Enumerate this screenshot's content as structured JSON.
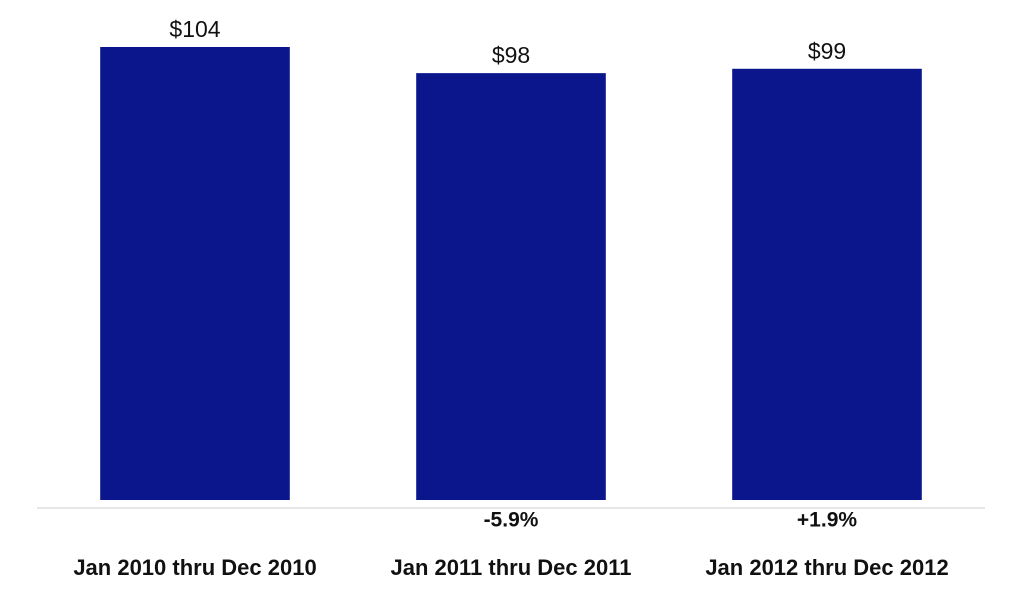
{
  "chart_data": {
    "type": "bar",
    "categories": [
      "Jan 2010 thru Dec 2010",
      "Jan 2011 thru Dec 2011",
      "Jan 2012 thru Dec 2012"
    ],
    "values": [
      104,
      98,
      99
    ],
    "value_labels": [
      "$104",
      "$98",
      "$99"
    ],
    "change_labels": [
      null,
      "-5.9%",
      "+1.9%"
    ],
    "color": "#0b168c"
  }
}
